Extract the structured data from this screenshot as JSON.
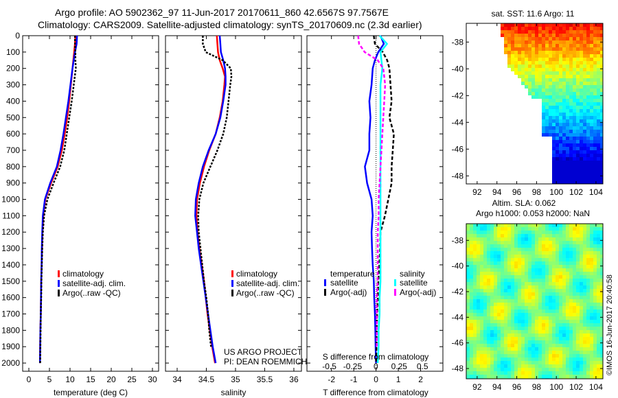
{
  "title": {
    "line1": "Argo profile: AO 5902362_97 11-Jun-2017 20170611_860 42.6567S 97.7567E",
    "line2": "Climatology: CARS2009. Satellite-adjusted climatology: synTS_20170609.nc (2.3d earlier)"
  },
  "credits": {
    "project": "US ARGO PROJECT",
    "pi": "PI: DEAN ROEMMICH",
    "imos": "©IMOS 16-Jun-2017 20:40:58"
  },
  "colors": {
    "climatology": "#ff0000",
    "satellite": "#0000ff",
    "argo": "#000000",
    "sal_satellite": "#00ffff",
    "sal_argo": "#ff00ff"
  },
  "chart_data": [
    {
      "type": "line",
      "id": "temperature",
      "xlabel": "temperature (deg C)",
      "ylabel": "",
      "xlim": [
        -1.5,
        31.5
      ],
      "ylim": [
        2050,
        0
      ],
      "xticks": [
        "0",
        "5",
        "10",
        "15",
        "20",
        "25",
        "30"
      ],
      "xtick_values": [
        0,
        5,
        10,
        15,
        20,
        25,
        30
      ],
      "yticks": [
        "0",
        "100",
        "200",
        "300",
        "400",
        "500",
        "600",
        "700",
        "800",
        "900",
        "1000",
        "1100",
        "1200",
        "1300",
        "1400",
        "1500",
        "1600",
        "1700",
        "1800",
        "1900",
        "2000"
      ],
      "depth": [
        0,
        50,
        100,
        150,
        200,
        300,
        400,
        500,
        600,
        700,
        800,
        900,
        1000,
        1100,
        1200,
        1300,
        1400,
        1500,
        1600,
        1700,
        1800,
        1900,
        2000
      ],
      "series": [
        {
          "name": "climatology",
          "values": [
            11.3,
            11.2,
            11.0,
            10.8,
            10.6,
            10.2,
            9.8,
            9.3,
            8.7,
            8.0,
            7.0,
            5.4,
            4.0,
            3.5,
            3.3,
            3.2,
            3.1,
            3.0,
            2.95,
            2.9,
            2.8,
            2.75,
            2.7
          ]
        },
        {
          "name": "satellite-adj. clim.",
          "values": [
            11.7,
            11.6,
            11.2,
            10.9,
            10.6,
            10.1,
            9.6,
            9.0,
            8.4,
            7.7,
            6.8,
            5.2,
            3.9,
            3.4,
            3.25,
            3.15,
            3.1,
            3.0,
            2.95,
            2.9,
            2.8,
            2.75,
            2.7
          ]
        },
        {
          "name": "Argo(..raw -QC)",
          "values": [
            11.2,
            11.2,
            11.3,
            11.3,
            11.4,
            10.9,
            10.4,
            9.8,
            9.2,
            8.6,
            7.6,
            6.0,
            4.5,
            3.7,
            3.4,
            3.25,
            3.15,
            3.05,
            3.0,
            2.9,
            2.85,
            2.8,
            2.75
          ]
        }
      ],
      "legend": [
        "climatology",
        "satellite-adj. clim.",
        "Argo(..raw -QC)"
      ]
    },
    {
      "type": "line",
      "id": "salinity",
      "xlabel": "salinity",
      "xlim": [
        33.8,
        36.13
      ],
      "ylim": [
        2050,
        0
      ],
      "xticks": [
        "34",
        "34.5",
        "35",
        "35.5",
        "36"
      ],
      "xtick_values": [
        34,
        34.5,
        35,
        35.5,
        36
      ],
      "depth": [
        0,
        50,
        100,
        150,
        200,
        250,
        300,
        400,
        500,
        600,
        700,
        800,
        900,
        1000,
        1100,
        1200,
        1300,
        1400,
        1500,
        1600,
        1700,
        1800,
        1900,
        2000
      ],
      "series": [
        {
          "name": "climatology",
          "values": [
            34.68,
            34.69,
            34.7,
            34.73,
            34.78,
            34.82,
            34.81,
            34.78,
            34.73,
            34.66,
            34.55,
            34.46,
            34.39,
            34.34,
            34.33,
            34.35,
            34.38,
            34.42,
            34.46,
            34.49,
            34.52,
            34.56,
            34.6,
            34.65
          ]
        },
        {
          "name": "satellite-adj. clim.",
          "values": [
            34.73,
            34.74,
            34.75,
            34.79,
            34.82,
            34.83,
            34.83,
            34.79,
            34.74,
            34.66,
            34.54,
            34.44,
            34.37,
            34.32,
            34.31,
            34.34,
            34.37,
            34.41,
            34.45,
            34.49,
            34.53,
            34.57,
            34.61,
            34.66
          ]
        },
        {
          "name": "Argo(..raw -QC)",
          "values": [
            34.44,
            34.44,
            34.49,
            34.78,
            34.92,
            34.93,
            34.91,
            34.88,
            34.85,
            34.79,
            34.69,
            34.57,
            34.45,
            34.38,
            34.36,
            34.37,
            34.4,
            34.43,
            34.46,
            34.5,
            34.53,
            34.55,
            34.58,
            null
          ]
        }
      ],
      "legend": [
        "climatology",
        "satellite-adj. clim.",
        "Argo(..raw -QC)"
      ]
    },
    {
      "type": "line",
      "id": "difference",
      "xlabel": "T difference from climatology",
      "x2label": "S difference from climatology",
      "xlim": [
        -3.1,
        3.0
      ],
      "x2lim": [
        -0.74,
        0.72
      ],
      "ylim": [
        2050,
        0
      ],
      "xticks": [
        "-2",
        "-1",
        "0",
        "1",
        "2"
      ],
      "xtick_values": [
        -2,
        -1,
        0,
        1,
        2
      ],
      "x2ticks": [
        "-0.5",
        "-0.25",
        "0",
        "0.25",
        "0.5"
      ],
      "x2tick_values": [
        -0.5,
        -0.25,
        0,
        0.25,
        0.5
      ],
      "depth": [
        0,
        50,
        100,
        150,
        200,
        300,
        400,
        500,
        600,
        700,
        800,
        900,
        1000,
        1100,
        1200,
        1300,
        1400,
        1500,
        1600,
        1700,
        1800,
        1900,
        2000
      ],
      "series": [
        {
          "name": "temperature satellite",
          "axis": "T",
          "values": [
            0.2,
            0.35,
            0.1,
            -0.05,
            -0.15,
            -0.2,
            -0.3,
            -0.25,
            -0.3,
            -0.3,
            -0.5,
            -0.4,
            -0.2,
            -0.15,
            -0.2,
            -0.18,
            -0.15,
            -0.1,
            -0.08,
            -0.05,
            -0.03,
            -0.02,
            0
          ]
        },
        {
          "name": "temperature Argo(-adj)",
          "axis": "T",
          "values": [
            -0.1,
            -0.05,
            0.3,
            0.5,
            0.6,
            0.65,
            0.7,
            0.6,
            0.8,
            0.75,
            0.7,
            0.7,
            0.55,
            0.4,
            0.2,
            0.18,
            0.15,
            0.1,
            0.08,
            0.05,
            0.03,
            0.02,
            0
          ]
        },
        {
          "name": "salinity satellite",
          "axis": "S",
          "values": [
            0.04,
            0.12,
            0.05,
            0.06,
            0.07,
            0.05,
            0.05,
            0.05,
            0.05,
            0.05,
            0.05,
            0.05,
            0.05,
            0.05,
            0.05,
            0.05,
            0.05,
            0.05,
            0.04,
            0.04,
            0.03,
            0.03,
            0.02
          ]
        },
        {
          "name": "salinity Argo(-adj)",
          "axis": "S",
          "values": [
            -0.19,
            -0.18,
            -0.12,
            0.02,
            0.08,
            0.1,
            0.09,
            0.08,
            0.07,
            0.06,
            0.05,
            0.04,
            0.03,
            0.03,
            0.02,
            0.02,
            0.02,
            0.02,
            0.01,
            0.01,
            0.01,
            0.01,
            null
          ]
        }
      ],
      "legend": {
        "temp_header": "temperature",
        "sal_header": "salinity",
        "sat": "satellite",
        "argo": "Argo(-adj)"
      }
    },
    {
      "type": "heatmap",
      "id": "sst-map",
      "title": "sat. SST: 11.6 Argo: 11",
      "xlim": [
        90.9,
        104.7
      ],
      "ylim": [
        -48.6,
        -36.6
      ],
      "xticks": [
        "92",
        "94",
        "96",
        "98",
        "100",
        "102",
        "104"
      ],
      "xtick_values": [
        92,
        94,
        96,
        98,
        100,
        102,
        104
      ],
      "yticks": [
        "-38",
        "-40",
        "-42",
        "-44",
        "-46",
        "-48"
      ],
      "ytick_values": [
        -38,
        -40,
        -42,
        -44,
        -46,
        -48
      ]
    },
    {
      "type": "heatmap",
      "id": "sla-map",
      "title1": "Altim. SLA: 0.062",
      "title2": "Argo h1000: 0.053 h2000: NaN",
      "xlim": [
        90.9,
        104.7
      ],
      "ylim": [
        -48.8,
        -36.7
      ],
      "xticks": [
        "92",
        "94",
        "96",
        "98",
        "100",
        "102",
        "104"
      ],
      "xtick_values": [
        92,
        94,
        96,
        98,
        100,
        102,
        104
      ],
      "yticks": [
        "-38",
        "-40",
        "-42",
        "-44",
        "-46",
        "-48"
      ],
      "ytick_values": [
        -38,
        -40,
        -42,
        -44,
        -46,
        -48
      ]
    }
  ]
}
